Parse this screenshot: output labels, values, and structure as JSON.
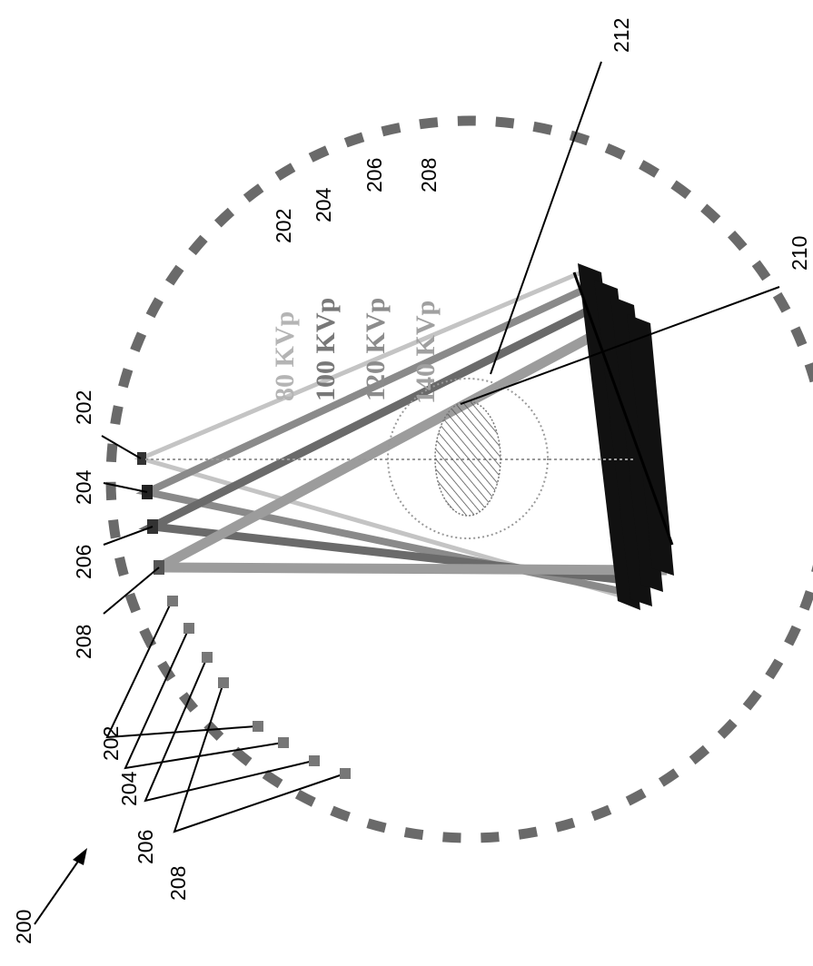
{
  "figure": {
    "number": "200",
    "ref_202": "202",
    "ref_204": "204",
    "ref_206": "206",
    "ref_208": "208",
    "ref_210": "210",
    "ref_212": "212"
  },
  "legend": [
    {
      "text": "80 KVp",
      "ref": "202",
      "color": "#b4b4b4"
    },
    {
      "text": "100 KVp",
      "ref": "204",
      "color": "#787878"
    },
    {
      "text": "120 KVp",
      "ref": "206",
      "color": "#8c8c8c"
    },
    {
      "text": "140 KVp",
      "ref": "208",
      "color": "#a0a0a0"
    }
  ],
  "colors": {
    "ink": "#000000",
    "dark_gray": "#404040",
    "mid_gray": "#808080",
    "light_gray": "#b0b0b0",
    "background": "#ffffff"
  }
}
